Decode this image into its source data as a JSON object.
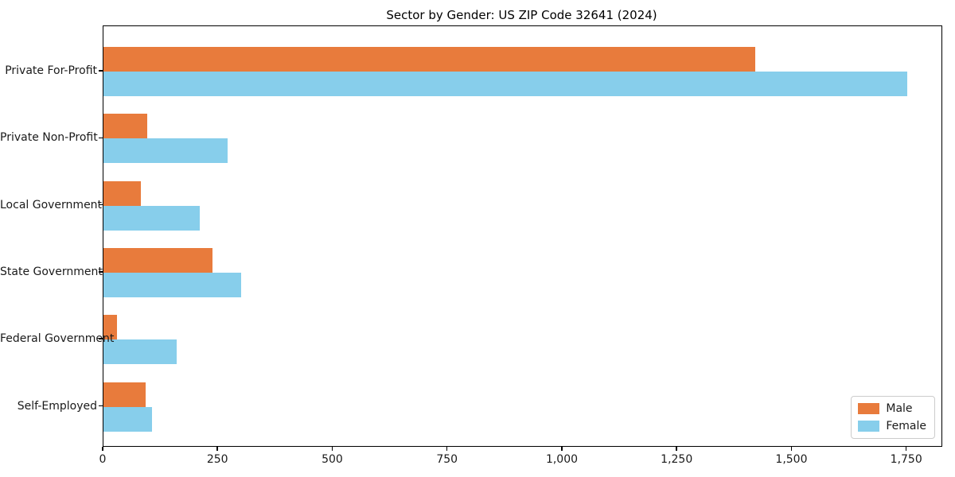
{
  "chart_data": {
    "type": "bar",
    "orientation": "horizontal",
    "title": "Sector by Gender: US ZIP Code 32641 (2024)",
    "categories": [
      "Private For-Profit",
      "Private Non-Profit",
      "Local Government",
      "State Government",
      "Federal Government",
      "Self-Employed"
    ],
    "series": [
      {
        "name": "Male",
        "color": "#e87b3c",
        "values": [
          1420,
          95,
          82,
          238,
          30,
          92
        ]
      },
      {
        "name": "Female",
        "color": "#87ceeb",
        "values": [
          1750,
          270,
          210,
          300,
          160,
          105
        ]
      }
    ],
    "xlabel": "",
    "ylabel": "",
    "xlim": [
      0,
      1825
    ],
    "x_ticks": [
      0,
      250,
      500,
      750,
      1000,
      1250,
      1500,
      1750
    ],
    "x_tick_labels": [
      "0",
      "250",
      "500",
      "750",
      "1,000",
      "1,250",
      "1,500",
      "1,750"
    ],
    "grid": false,
    "legend": {
      "position": "lower right",
      "items": [
        "Male",
        "Female"
      ]
    }
  }
}
